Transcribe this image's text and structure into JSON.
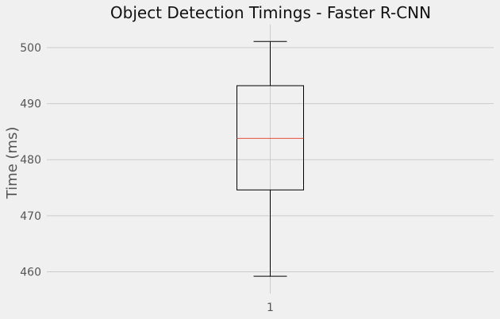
{
  "chart_data": {
    "type": "box",
    "title": "Object Detection Timings - Faster R-CNN",
    "xlabel": "",
    "ylabel": "Time (ms)",
    "categories": [
      "1"
    ],
    "ylim": [
      456.1,
      504.1
    ],
    "yticks": [
      460,
      470,
      480,
      490,
      500
    ],
    "grid": true,
    "boxes": [
      {
        "category": "1",
        "whisker_low": 459.2,
        "q1": 474.6,
        "median": 483.8,
        "q3": 493.2,
        "whisker_high": 501.1
      }
    ],
    "colors": {
      "background": "#f0f0f0",
      "grid": "#cbcbcb",
      "box": "#000000",
      "median": "#e5533c"
    }
  }
}
